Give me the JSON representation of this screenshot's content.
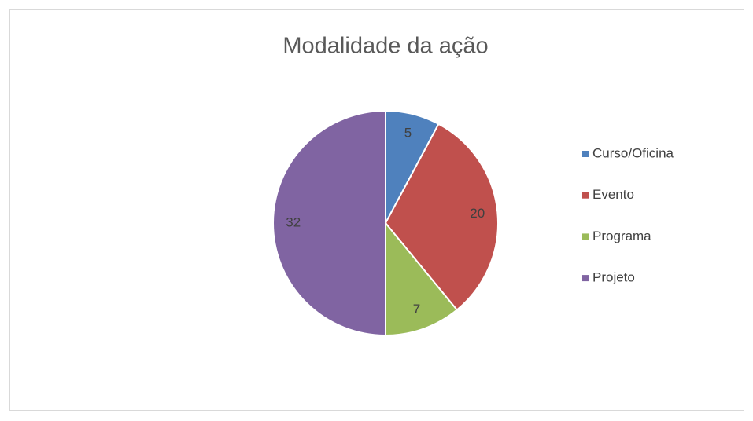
{
  "chart_data": {
    "type": "pie",
    "title": "Modalidade da ação",
    "categories": [
      "Curso/Oficina",
      "Evento",
      "Programa",
      "Projeto"
    ],
    "values": [
      5,
      20,
      7,
      32
    ],
    "colors": [
      "#4f81bd",
      "#c0504d",
      "#9bbb59",
      "#8064a2"
    ],
    "legend": "right"
  }
}
